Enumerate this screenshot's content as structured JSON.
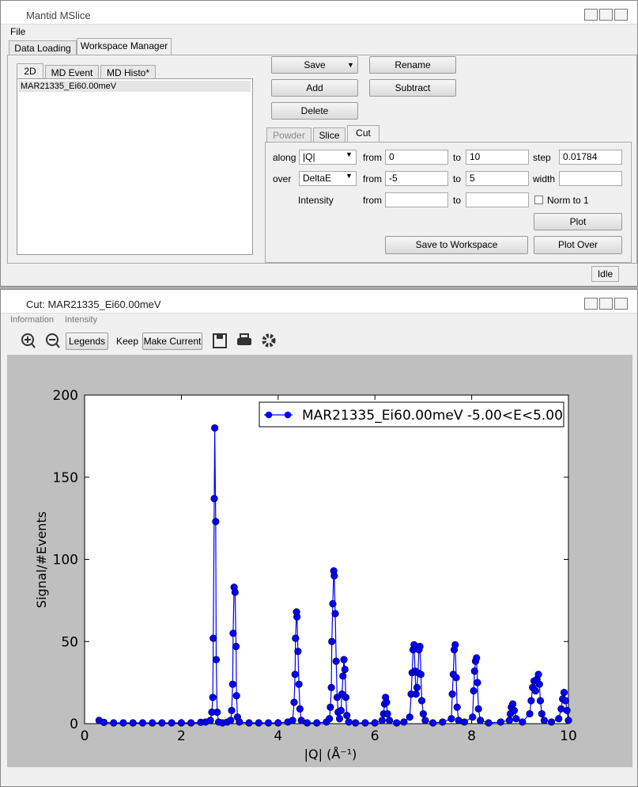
{
  "main_window": {
    "title": "Mantid MSlice",
    "menu": [
      "File"
    ],
    "tabs": [
      "Data Loading",
      "Workspace Manager"
    ],
    "workspace_tabs": [
      "2D",
      "MD Event",
      "MD Histo*"
    ],
    "workspaces": [
      "MAR21335_Ei60.00meV"
    ],
    "buttons": [
      "Save",
      "Rename",
      "Add",
      "Subtract",
      "Delete"
    ],
    "cut_tabs": [
      "Powder",
      "Slice",
      "Cut"
    ],
    "cut": {
      "along_label": "along",
      "along": "|Q|",
      "from_label": "from",
      "along_from": "0",
      "to_label": "to",
      "along_to": "10",
      "step_label": "step",
      "step": "0.01784",
      "over_label": "over",
      "over": "DeltaE",
      "over_from": "-5",
      "over_to": "5",
      "width_label": "width",
      "intensity_label": "Intensity",
      "norm_label": "Norm to 1"
    },
    "action_buttons": [
      "Plot",
      "Save to Workspace",
      "Plot Over"
    ],
    "status": "Idle"
  },
  "cut_window": {
    "title": "Cut: MAR21335_Ei60.00meV",
    "menu": [
      "Information",
      "Intensity"
    ],
    "toolbar": [
      "Legends",
      "Keep",
      "Make Current"
    ]
  },
  "chart_data": {
    "type": "line",
    "x_label": "|Q| (Å⁻¹)",
    "y_label": "Signal/#Events",
    "xlim": [
      0,
      10
    ],
    "ylim": [
      0,
      200
    ],
    "xticks": [
      0,
      2,
      4,
      6,
      8,
      10
    ],
    "yticks": [
      0,
      50,
      100,
      150,
      200
    ],
    "legend": "upper right",
    "series": [
      {
        "name": "MAR21335_Ei60.00meV -5.00<E<5.00",
        "color": "#0000ff",
        "x": [
          0.3,
          0.4,
          0.6,
          0.8,
          1.0,
          1.2,
          1.4,
          1.6,
          1.8,
          2.0,
          2.2,
          2.4,
          2.5,
          2.6,
          2.63,
          2.65,
          2.66,
          2.68,
          2.69,
          2.71,
          2.72,
          2.74,
          2.77,
          2.85,
          2.95,
          3.02,
          3.04,
          3.06,
          3.07,
          3.09,
          3.11,
          3.13,
          3.14,
          3.16,
          3.2,
          3.4,
          3.6,
          3.8,
          4.0,
          4.2,
          4.3,
          4.33,
          4.35,
          4.36,
          4.38,
          4.39,
          4.41,
          4.43,
          4.45,
          4.48,
          4.6,
          4.8,
          5.0,
          5.06,
          5.08,
          5.1,
          5.11,
          5.13,
          5.15,
          5.16,
          5.18,
          5.2,
          5.22,
          5.24,
          5.27,
          5.3,
          5.32,
          5.34,
          5.36,
          5.38,
          5.4,
          5.42,
          5.46,
          5.6,
          5.8,
          6.0,
          6.15,
          6.18,
          6.2,
          6.22,
          6.24,
          6.26,
          6.3,
          6.45,
          6.6,
          6.72,
          6.75,
          6.77,
          6.79,
          6.81,
          6.83,
          6.85,
          6.87,
          6.89,
          6.91,
          6.93,
          6.95,
          6.97,
          7.0,
          7.04,
          7.2,
          7.4,
          7.58,
          7.6,
          7.62,
          7.64,
          7.66,
          7.68,
          7.7,
          7.73,
          7.85,
          8.02,
          8.04,
          8.06,
          8.08,
          8.1,
          8.12,
          8.14,
          8.18,
          8.35,
          8.6,
          8.78,
          8.8,
          8.82,
          8.85,
          8.88,
          8.92,
          9.05,
          9.2,
          9.23,
          9.26,
          9.29,
          9.32,
          9.35,
          9.38,
          9.4,
          9.42,
          9.45,
          9.5,
          9.65,
          9.8,
          9.85,
          9.88,
          9.91,
          9.94,
          9.97,
          10
        ],
        "values": [
          2,
          0.8,
          0.5,
          0.5,
          0.5,
          0.5,
          0.5,
          0.5,
          0.5,
          0.5,
          0.5,
          0.8,
          1,
          2,
          7,
          16,
          52,
          137,
          180,
          123,
          39,
          7,
          1,
          0.5,
          1,
          2,
          8,
          24,
          55,
          83,
          80,
          47,
          17,
          4,
          1,
          0.5,
          0.5,
          0.5,
          0.5,
          1,
          2,
          13,
          30,
          52,
          68,
          65,
          44,
          24,
          9,
          2,
          0.5,
          0.5,
          1,
          3,
          10,
          22,
          50,
          73,
          93,
          90,
          67,
          38,
          16,
          7,
          3,
          8,
          18,
          29,
          39,
          33,
          16,
          5,
          1,
          0.5,
          0.5,
          0.5,
          2,
          6,
          12,
          16,
          13,
          6,
          2,
          0.5,
          1,
          4,
          18,
          31,
          45,
          48,
          32,
          18,
          22,
          31,
          45,
          47,
          30,
          14,
          6,
          2,
          0.5,
          1,
          3,
          18,
          30,
          45,
          48,
          28,
          10,
          2,
          1,
          4,
          20,
          32,
          38,
          40,
          25,
          9,
          2,
          0.5,
          1,
          2,
          6,
          10,
          12,
          8,
          3,
          1,
          6,
          14,
          22,
          26,
          20,
          27,
          30,
          24,
          14,
          6,
          2,
          1,
          3,
          9,
          15,
          19,
          14,
          8,
          2
        ]
      }
    ]
  }
}
